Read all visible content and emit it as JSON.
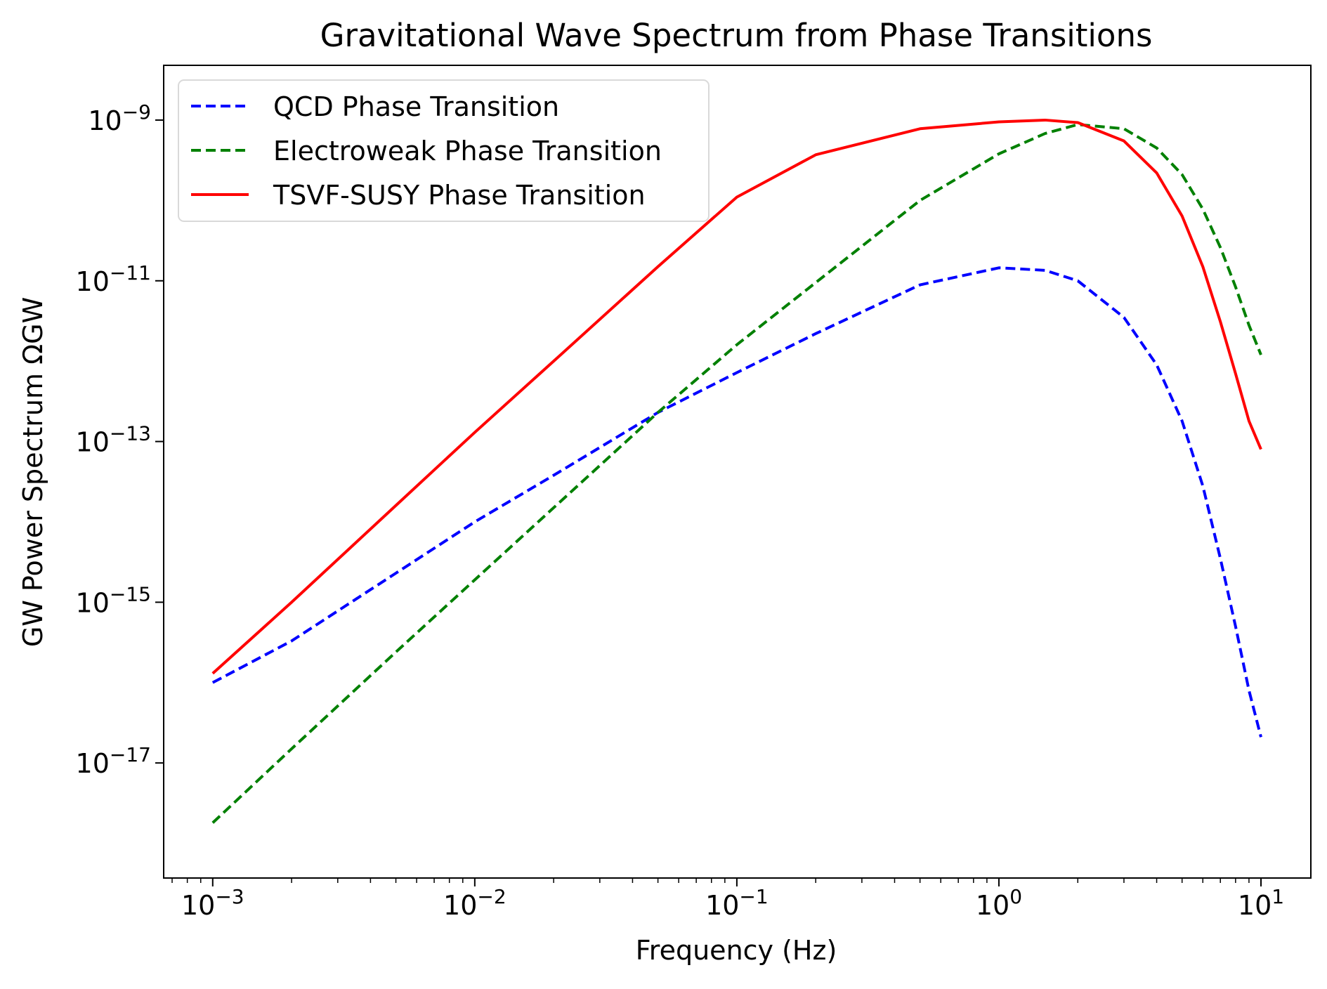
{
  "chart_data": {
    "type": "line",
    "title": "Gravitational Wave Spectrum from Phase Transitions",
    "xlabel": "Frequency (Hz)",
    "ylabel": "GW Power Spectrum ΩGW",
    "xscale": "log",
    "yscale": "log",
    "xlim": [
      0.00065,
      15.5
    ],
    "ylim": [
      3.7e-19,
      4.8e-09
    ],
    "x_ticks": [
      {
        "base": "10",
        "exp": "−3"
      },
      {
        "base": "10",
        "exp": "−2"
      },
      {
        "base": "10",
        "exp": "−1"
      },
      {
        "base": "10",
        "exp": "0"
      },
      {
        "base": "10",
        "exp": "1"
      }
    ],
    "y_ticks": [
      {
        "base": "10",
        "exp": "−17"
      },
      {
        "base": "10",
        "exp": "−15"
      },
      {
        "base": "10",
        "exp": "−13"
      },
      {
        "base": "10",
        "exp": "−11"
      },
      {
        "base": "10",
        "exp": "−9"
      }
    ],
    "legend_position": "upper-left",
    "grid": false,
    "series": [
      {
        "name": "QCD Phase Transition",
        "color": "#0000ff",
        "style": "dashed",
        "x": [
          0.001,
          0.002,
          0.005,
          0.01,
          0.02,
          0.05,
          0.1,
          0.2,
          0.5,
          1,
          1.5,
          2,
          3,
          4,
          5,
          6,
          7,
          8,
          9,
          10
        ],
        "y": [
          1e-16,
          3.3e-16,
          2.3e-15,
          1e-14,
          3.8e-14,
          2.3e-13,
          7.2e-13,
          2.2e-12,
          8.9e-12,
          1.45e-11,
          1.35e-11,
          1e-11,
          3.5e-12,
          9e-13,
          1.8e-13,
          2.8e-14,
          3.5e-15,
          5e-16,
          8e-17,
          2.1e-17
        ]
      },
      {
        "name": "Electroweak Phase Transition",
        "color": "#008000",
        "style": "dashed",
        "x": [
          0.001,
          0.002,
          0.005,
          0.01,
          0.02,
          0.05,
          0.1,
          0.2,
          0.5,
          1,
          1.5,
          2,
          3,
          4,
          5,
          6,
          7,
          8,
          9,
          10
        ],
        "y": [
          1.8e-18,
          1.5e-17,
          2.4e-16,
          1.9e-15,
          1.5e-14,
          2.3e-13,
          1.6e-12,
          9.5e-12,
          1e-10,
          3.8e-10,
          6.8e-10,
          8.8e-10,
          7.8e-10,
          4.5e-10,
          2.1e-10,
          7.8e-11,
          2.6e-11,
          8.4e-12,
          2.8e-12,
          1.2e-12
        ]
      },
      {
        "name": "TSVF-SUSY Phase Transition",
        "color": "#ff0000",
        "style": "solid",
        "x": [
          0.001,
          0.002,
          0.005,
          0.01,
          0.02,
          0.05,
          0.1,
          0.2,
          0.5,
          1,
          1.5,
          2,
          3,
          4,
          5,
          6,
          7,
          8,
          9,
          10
        ],
        "y": [
          1.3e-16,
          1e-15,
          1.6e-14,
          1.3e-13,
          1e-12,
          1.5e-11,
          1.1e-10,
          3.7e-10,
          7.8e-10,
          9.5e-10,
          1e-09,
          9.3e-10,
          5.5e-10,
          2.2e-10,
          6.4e-11,
          1.5e-11,
          3.1e-12,
          7e-13,
          1.8e-13,
          8e-14
        ]
      }
    ]
  }
}
